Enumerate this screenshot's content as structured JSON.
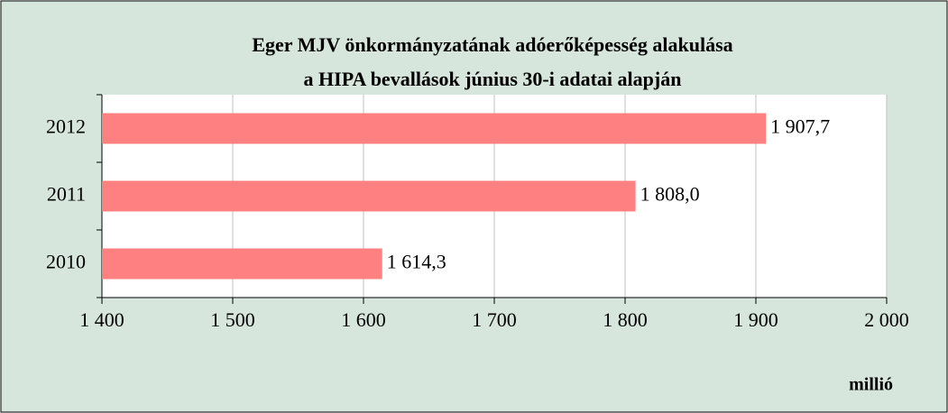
{
  "chart_data": {
    "type": "barh",
    "title": [
      "Eger MJV önkormányzatának adóerőképesség alakulása",
      "a HIPA bevallások június 30-i adatai alapján"
    ],
    "categories": [
      "2012",
      "2011",
      "2010"
    ],
    "values": [
      1907.7,
      1808.0,
      1614.3
    ],
    "value_labels": [
      "1 907,7",
      "1 808,0",
      "1 614,3"
    ],
    "color": "#ff8080",
    "xlim": [
      1400,
      2000
    ],
    "xticks": [
      {
        "value": 1400,
        "label": "1 400"
      },
      {
        "value": 1500,
        "label": "1 500"
      },
      {
        "value": 1600,
        "label": "1 600"
      },
      {
        "value": 1700,
        "label": "1 700"
      },
      {
        "value": 1800,
        "label": "1 800"
      },
      {
        "value": 1900,
        "label": "1 900"
      },
      {
        "value": 2000,
        "label": "2 000"
      }
    ],
    "xlabel": "millió",
    "grid": true
  }
}
